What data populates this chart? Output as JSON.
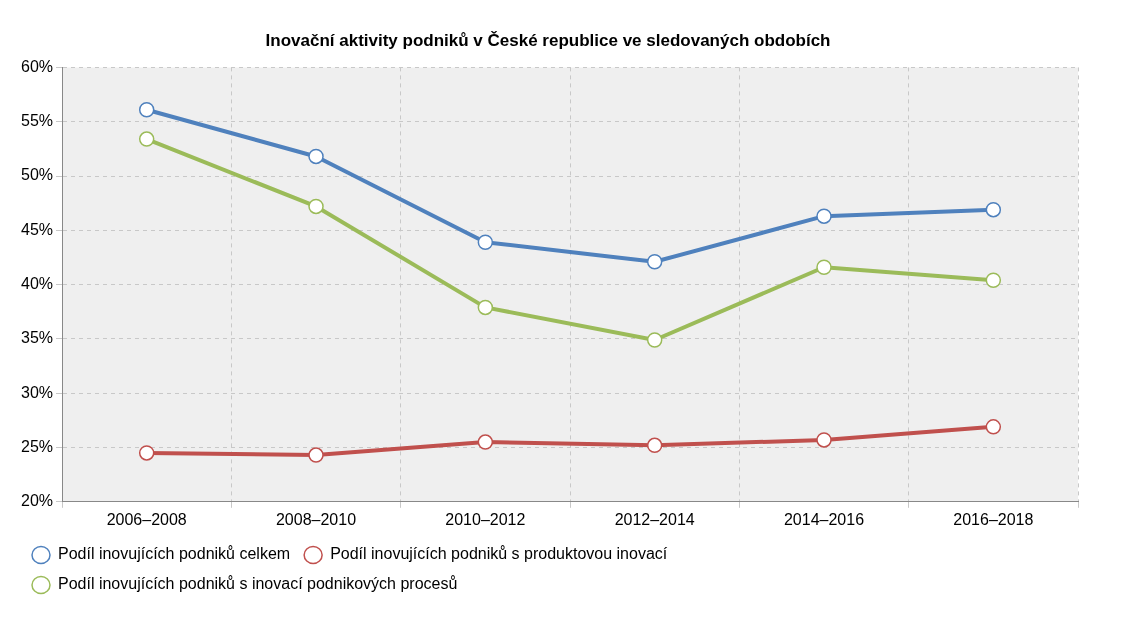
{
  "chart_data": {
    "type": "line",
    "title": "Inovační aktivity podniků v České republice ve sledovaných obdobích",
    "categories": [
      "2006–2008",
      "2008–2010",
      "2010–2012",
      "2012–2014",
      "2014–2016",
      "2016–2018"
    ],
    "series": [
      {
        "name": "Podíl inovujících podniků celkem",
        "color": "#4f81bd",
        "values": [
          56.1,
          51.8,
          43.9,
          42.1,
          46.3,
          46.9
        ]
      },
      {
        "name": "Podíl inovujících podniků s produktovou inovací",
        "color": "#c0504d",
        "values": [
          24.5,
          24.3,
          25.5,
          25.2,
          25.7,
          26.9
        ]
      },
      {
        "name": "Podíl inovujících podniků s inovací podnikových procesů",
        "color": "#9bbb59",
        "values": [
          53.4,
          47.2,
          37.9,
          34.9,
          41.6,
          40.4
        ]
      }
    ],
    "ylim": [
      20,
      60
    ],
    "yticks": [
      {
        "value": 20,
        "label": "20%"
      },
      {
        "value": 25,
        "label": "25%"
      },
      {
        "value": 30,
        "label": "30%"
      },
      {
        "value": 35,
        "label": "35%"
      },
      {
        "value": 40,
        "label": "40%"
      },
      {
        "value": 45,
        "label": "45%"
      },
      {
        "value": 50,
        "label": "50%"
      },
      {
        "value": 55,
        "label": "55%"
      },
      {
        "value": 60,
        "label": "60%"
      }
    ],
    "grid": true,
    "legend": "bottom",
    "marker": "circle",
    "line_style": "solid"
  }
}
